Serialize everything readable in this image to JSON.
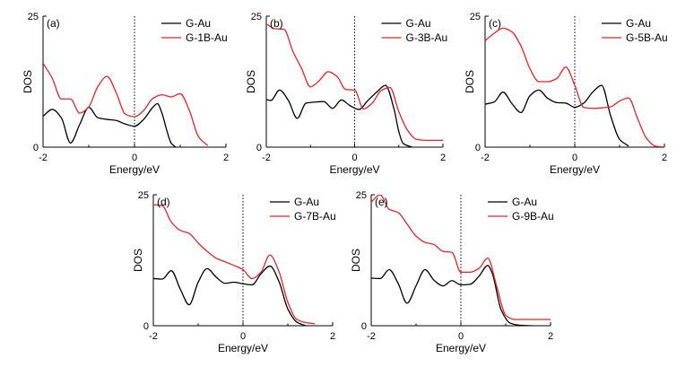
{
  "colors": {
    "g_au": "#000000",
    "g_b_au": "#e3262b",
    "axis": "#000000"
  },
  "chart_data": [
    {
      "type": "line",
      "panel_label": "(a)",
      "xlabel": "Energy/eV",
      "ylabel": "DOS",
      "xlim": [
        -2,
        2
      ],
      "ylim": [
        0,
        25
      ],
      "xticks": [
        "-2",
        "0",
        "2"
      ],
      "yticks": [
        "0",
        "25"
      ],
      "fermi_line_at": 0,
      "series": [
        {
          "name": "G-Au",
          "color": "#000000",
          "x": [
            -2.0,
            -1.8,
            -1.6,
            -1.4,
            -1.2,
            -1.0,
            -0.8,
            -0.6,
            -0.4,
            -0.2,
            0.0,
            0.2,
            0.4,
            0.5,
            0.6,
            0.7,
            0.8,
            0.9
          ],
          "y": [
            5.9,
            7.2,
            5.6,
            0.8,
            4.3,
            7.6,
            5.6,
            5.3,
            5.1,
            4.4,
            4.0,
            5.3,
            7.6,
            8.3,
            6.5,
            3.4,
            0.8,
            0.0
          ]
        },
        {
          "name": "G-1B-Au",
          "color": "#e3262b",
          "x": [
            -2.0,
            -1.8,
            -1.6,
            -1.4,
            -1.2,
            -1.0,
            -0.8,
            -0.6,
            -0.4,
            -0.2,
            0.0,
            0.2,
            0.4,
            0.6,
            0.8,
            1.0,
            1.2,
            1.4,
            1.6
          ],
          "y": [
            16.0,
            13.2,
            9.2,
            9.2,
            6.5,
            7.7,
            11.6,
            13.5,
            10.4,
            6.3,
            5.8,
            7.0,
            9.3,
            10.0,
            9.6,
            10.2,
            7.0,
            2.0,
            0.3
          ]
        }
      ]
    },
    {
      "type": "line",
      "panel_label": "(b)",
      "xlabel": "Energy/eV",
      "ylabel": "DOS",
      "xlim": [
        -2,
        2
      ],
      "ylim": [
        0,
        25
      ],
      "xticks": [
        "-2",
        "0",
        "2"
      ],
      "yticks": [
        "0",
        "25"
      ],
      "fermi_line_at": 0,
      "series": [
        {
          "name": "G-Au",
          "color": "#000000",
          "x": [
            -2.0,
            -1.9,
            -1.7,
            -1.5,
            -1.3,
            -1.1,
            -0.9,
            -0.7,
            -0.5,
            -0.3,
            -0.1,
            0.1,
            0.3,
            0.5,
            0.7,
            0.9,
            1.0,
            1.1,
            1.3
          ],
          "y": [
            9.1,
            8.9,
            10.9,
            8.9,
            5.5,
            8.4,
            8.6,
            8.7,
            7.4,
            9.0,
            7.9,
            7.2,
            8.9,
            10.5,
            11.8,
            7.0,
            3.0,
            0.7,
            0.0
          ]
        },
        {
          "name": "G-3B-Au",
          "color": "#e3262b",
          "x": [
            -2.0,
            -1.8,
            -1.6,
            -1.4,
            -1.2,
            -1.0,
            -0.8,
            -0.6,
            -0.4,
            -0.2,
            0.0,
            0.2,
            0.4,
            0.6,
            0.8,
            1.0,
            1.2,
            1.4,
            1.6,
            1.8,
            2.0
          ],
          "y": [
            23.5,
            22.6,
            22.5,
            18.3,
            15.0,
            11.5,
            12.7,
            14.4,
            13.5,
            11.0,
            10.9,
            7.3,
            8.4,
            10.8,
            11.4,
            6.8,
            3.2,
            1.5,
            1.3,
            1.3,
            1.3
          ]
        }
      ]
    },
    {
      "type": "line",
      "panel_label": "(c)",
      "xlabel": "Energy/eV",
      "ylabel": "DOS",
      "xlim": [
        -2,
        2
      ],
      "ylim": [
        0,
        25
      ],
      "xticks": [
        "-2",
        "0",
        "2"
      ],
      "yticks": [
        "0",
        "25"
      ],
      "fermi_line_at": 0,
      "series": [
        {
          "name": "G-Au",
          "color": "#000000",
          "x": [
            -2.0,
            -1.8,
            -1.6,
            -1.4,
            -1.2,
            -1.0,
            -0.8,
            -0.6,
            -0.4,
            -0.2,
            0.0,
            0.2,
            0.4,
            0.6,
            0.8,
            1.0,
            1.2
          ],
          "y": [
            8.2,
            8.6,
            10.5,
            8.3,
            6.6,
            9.8,
            10.9,
            9.3,
            8.5,
            8.4,
            7.6,
            8.4,
            10.5,
            11.8,
            6.0,
            1.5,
            0.2
          ]
        },
        {
          "name": "G-5B-Au",
          "color": "#e3262b",
          "x": [
            -2.0,
            -1.8,
            -1.6,
            -1.4,
            -1.2,
            -1.0,
            -0.8,
            -0.6,
            -0.4,
            -0.2,
            0.0,
            0.2,
            0.4,
            0.6,
            0.8,
            1.0,
            1.2,
            1.4,
            1.6,
            1.8,
            2.0
          ],
          "y": [
            20.3,
            21.7,
            22.7,
            22.0,
            19.3,
            15.0,
            12.5,
            12.5,
            13.1,
            15.3,
            11.8,
            7.6,
            7.4,
            7.5,
            7.7,
            8.8,
            9.4,
            5.5,
            1.7,
            0.2,
            0.0
          ]
        }
      ]
    },
    {
      "type": "line",
      "panel_label": "(d)",
      "xlabel": "Energy/eV",
      "ylabel": "DOS",
      "xlim": [
        -2,
        2
      ],
      "ylim": [
        0,
        25
      ],
      "xticks": [
        "-2",
        "0",
        "2"
      ],
      "yticks": [
        "0",
        "25"
      ],
      "fermi_line_at": 0,
      "series": [
        {
          "name": "G-Au",
          "color": "#000000",
          "x": [
            -2.0,
            -1.8,
            -1.6,
            -1.4,
            -1.2,
            -1.0,
            -0.8,
            -0.6,
            -0.4,
            -0.2,
            0.0,
            0.2,
            0.4,
            0.6,
            0.8,
            1.0,
            1.2,
            1.4
          ],
          "y": [
            9.0,
            8.9,
            10.5,
            7.0,
            4.0,
            8.3,
            10.9,
            9.3,
            8.1,
            8.3,
            8.0,
            7.8,
            9.9,
            11.4,
            8.5,
            3.2,
            0.7,
            0.0
          ]
        },
        {
          "name": "G-7B-Au",
          "color": "#e3262b",
          "x": [
            -2.0,
            -1.8,
            -1.6,
            -1.4,
            -1.2,
            -1.0,
            -0.8,
            -0.6,
            -0.4,
            -0.2,
            0.0,
            0.2,
            0.4,
            0.6,
            0.8,
            1.0,
            1.2,
            1.4,
            1.6
          ],
          "y": [
            23.1,
            22.9,
            19.8,
            18.2,
            17.6,
            15.8,
            14.2,
            12.9,
            12.2,
            11.5,
            10.7,
            9.0,
            10.2,
            13.5,
            10.4,
            4.5,
            1.2,
            0.6,
            0.4
          ]
        }
      ]
    },
    {
      "type": "line",
      "panel_label": "(e)",
      "xlabel": "Energy/eV",
      "ylabel": "DOS",
      "xlim": [
        -2,
        2
      ],
      "ylim": [
        0,
        25
      ],
      "xticks": [
        "-2",
        "0",
        "2"
      ],
      "yticks": [
        "0",
        "25"
      ],
      "fermi_line_at": 0,
      "series": [
        {
          "name": "G-Au",
          "color": "#000000",
          "x": [
            -2.0,
            -1.8,
            -1.6,
            -1.4,
            -1.2,
            -1.0,
            -0.8,
            -0.6,
            -0.4,
            -0.2,
            0.0,
            0.2,
            0.4,
            0.6,
            0.7,
            0.9,
            1.1,
            1.3,
            1.6
          ],
          "y": [
            9.1,
            9.0,
            10.7,
            8.1,
            4.3,
            7.6,
            10.7,
            8.7,
            7.6,
            8.6,
            7.8,
            7.9,
            9.4,
            11.5,
            10.0,
            3.0,
            0.5,
            0.1,
            0.0
          ]
        },
        {
          "name": "G-9B-Au",
          "color": "#e3262b",
          "x": [
            -2.0,
            -1.8,
            -1.6,
            -1.4,
            -1.2,
            -1.0,
            -0.8,
            -0.6,
            -0.4,
            -0.2,
            0.0,
            0.2,
            0.4,
            0.6,
            0.8,
            1.0,
            1.2,
            1.6,
            2.0
          ],
          "y": [
            23.6,
            25.0,
            22.2,
            21.6,
            19.4,
            17.1,
            15.9,
            15.5,
            14.2,
            14.0,
            10.2,
            10.2,
            10.9,
            12.9,
            7.5,
            2.0,
            1.2,
            1.2,
            1.2
          ]
        }
      ]
    }
  ]
}
